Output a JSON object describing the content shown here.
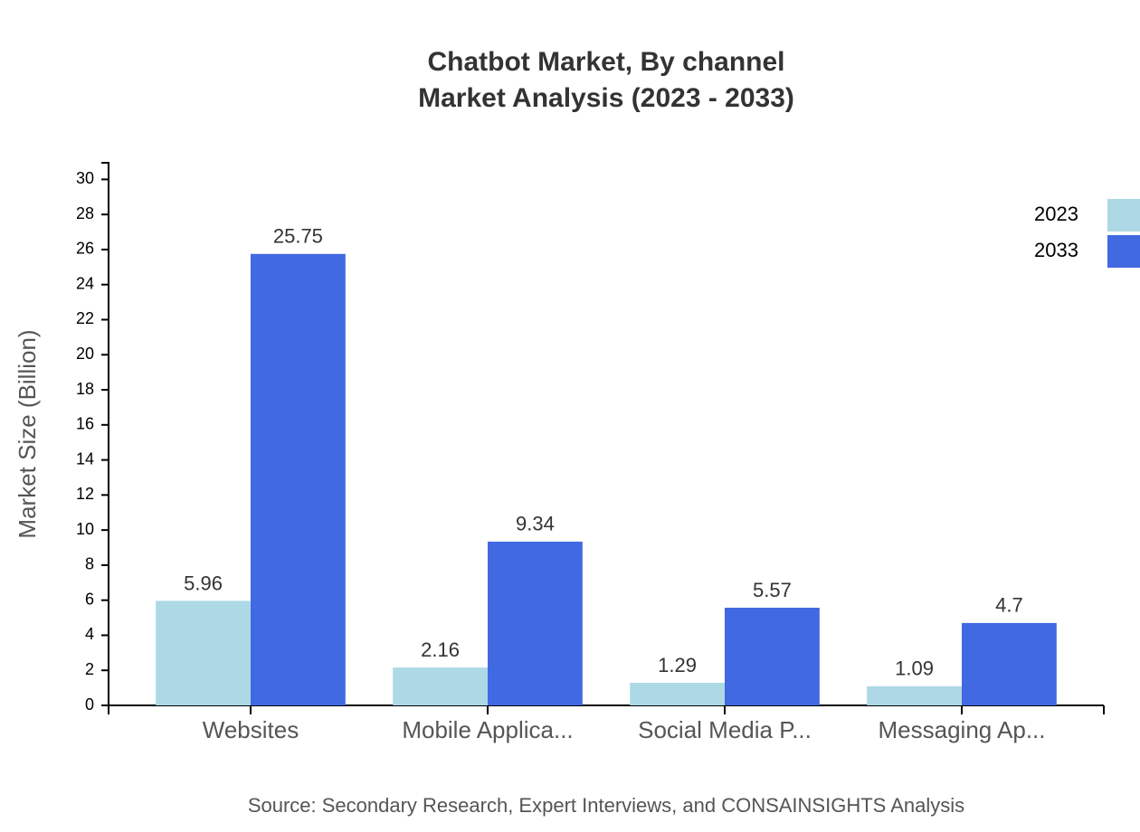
{
  "chart_data": {
    "type": "bar",
    "title": "Chatbot Market, By channel",
    "subtitle": "Market Analysis (2023 - 2033)",
    "y_label": "Market Size (Billion)",
    "source": "Source: Secondary Research, Expert Interviews, and CONSAINSIGHTS Analysis",
    "categories": [
      "Websites",
      "Mobile Applica...",
      "Social Media P...",
      "Messaging Ap..."
    ],
    "series": [
      {
        "name": "2023",
        "color": "#add8e6",
        "values": [
          5.96,
          2.16,
          1.29,
          1.09
        ]
      },
      {
        "name": "2033",
        "color": "#4169e1",
        "values": [
          25.75,
          9.34,
          5.57,
          4.7
        ]
      }
    ],
    "ylim": [
      0,
      31
    ],
    "yticks": [
      0,
      2,
      4,
      6,
      8,
      10,
      12,
      14,
      16,
      18,
      20,
      22,
      24,
      26,
      28,
      30
    ],
    "legend": "top-right"
  }
}
